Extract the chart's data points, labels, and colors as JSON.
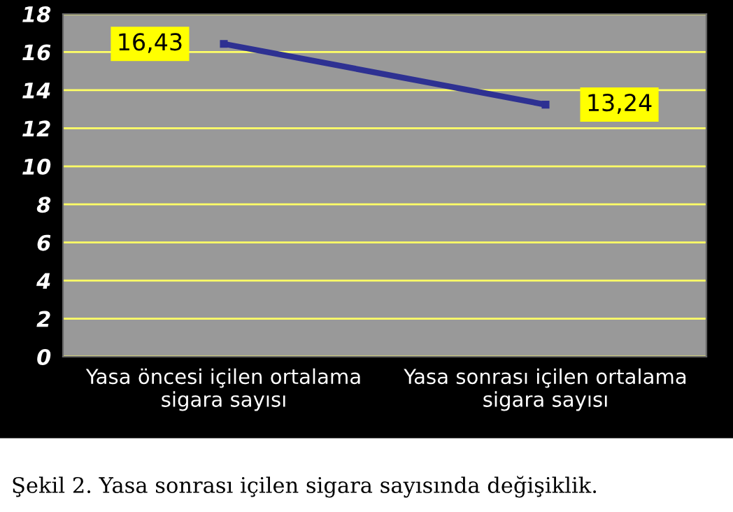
{
  "chart_data": {
    "type": "line",
    "categories": [
      "Yasa öncesi içilen ortalama\nsigara sayısı",
      "Yasa sonrası içilen ortalama\nsigara sayısı"
    ],
    "series": [
      {
        "color": "#2e3192",
        "values": [
          16.43,
          13.24
        ],
        "value_labels": [
          "16,43",
          "13,24"
        ]
      }
    ],
    "ylim": [
      0,
      18
    ],
    "yticks": [
      0,
      2,
      4,
      6,
      8,
      10,
      12,
      14,
      16,
      18
    ],
    "grid": "y",
    "marker": "square",
    "line_style": "solid",
    "annotations": [
      "Şekil 2. Yasa sonrası içilen sigara sayısında değişiklik."
    ]
  }
}
